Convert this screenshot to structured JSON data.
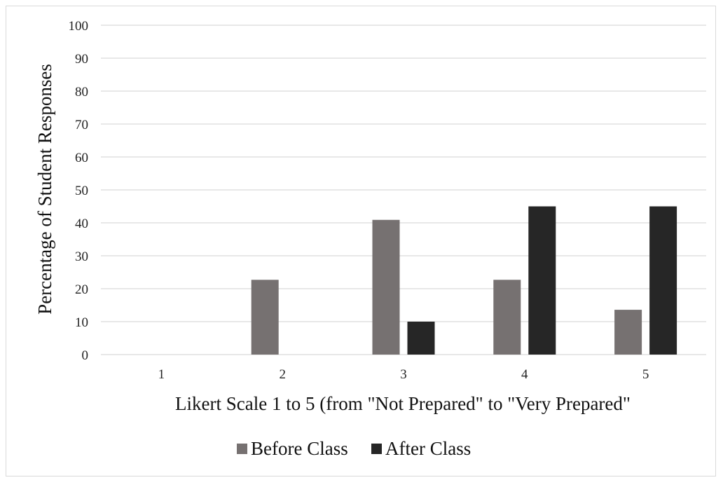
{
  "chart_data": {
    "type": "bar",
    "title": "",
    "xlabel": "Likert Scale 1 to 5 (from \"Not Prepared\" to \"Very Prepared\"",
    "ylabel": "Percentage of Student Responses",
    "categories": [
      "1",
      "2",
      "3",
      "4",
      "5"
    ],
    "ylim": [
      0,
      100
    ],
    "yticks": [
      0,
      10,
      20,
      30,
      40,
      50,
      60,
      70,
      80,
      90,
      100
    ],
    "grid": true,
    "legend_position": "bottom",
    "series": [
      {
        "name": "Before Class",
        "color": "#767171",
        "values": [
          0,
          22.7,
          40.9,
          22.7,
          13.6
        ]
      },
      {
        "name": "After Class",
        "color": "#262626",
        "values": [
          0,
          0,
          10,
          45,
          45
        ]
      }
    ]
  }
}
